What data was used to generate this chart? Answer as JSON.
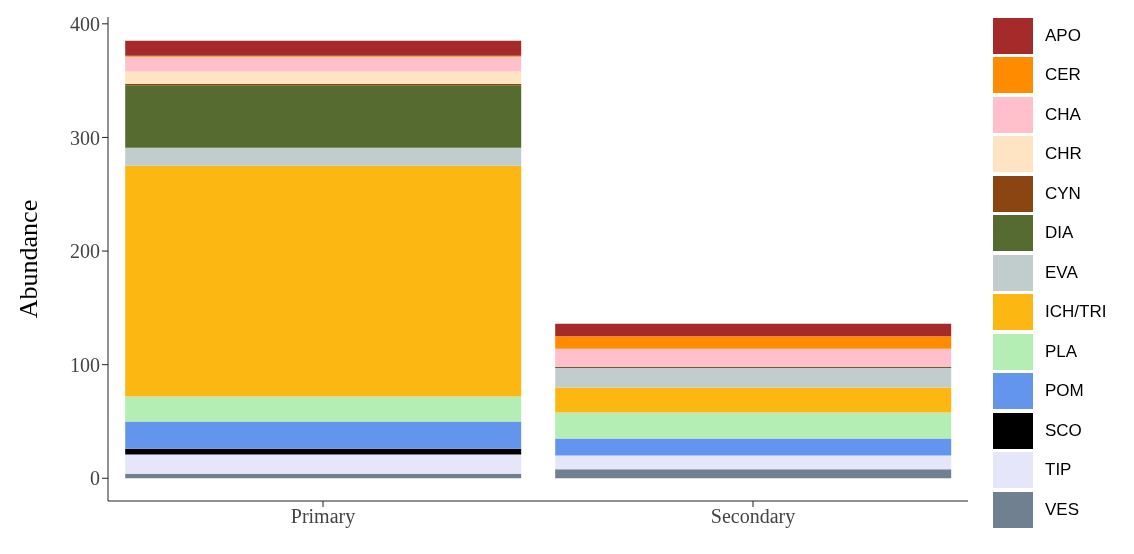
{
  "chart_data": {
    "type": "bar",
    "ylabel": "Abundance",
    "categories": [
      "Primary",
      "Secondary"
    ],
    "stacked": true,
    "ylim": [
      -20,
      406
    ],
    "yticks": [
      0,
      100,
      200,
      300,
      400
    ],
    "grid": false,
    "legend": "right",
    "series": [
      {
        "name": "VES",
        "color": "#708090",
        "values": [
          4,
          8
        ]
      },
      {
        "name": "TIP",
        "color": "#e6e6fa",
        "values": [
          17,
          12
        ]
      },
      {
        "name": "SCO",
        "color": "#000000",
        "values": [
          5,
          0
        ]
      },
      {
        "name": "POM",
        "color": "#6495ed",
        "values": [
          24,
          15
        ]
      },
      {
        "name": "PLA",
        "color": "#b4eeb4",
        "values": [
          22,
          23
        ]
      },
      {
        "name": "ICH/TRI",
        "color": "#fdb713",
        "values": [
          203,
          22
        ]
      },
      {
        "name": "EVA",
        "color": "#c1cdcd",
        "values": [
          16,
          17
        ]
      },
      {
        "name": "DIA",
        "color": "#556b2f",
        "values": [
          55,
          1
        ]
      },
      {
        "name": "CYN",
        "color": "#8b4513",
        "values": [
          1,
          0
        ]
      },
      {
        "name": "CHR",
        "color": "#ffe4c4",
        "values": [
          11,
          null
        ]
      },
      {
        "name": "CHA",
        "color": "#ffc0cb",
        "values": [
          13,
          16
        ]
      },
      {
        "name": "CER",
        "color": "#ff8c00",
        "values": [
          1,
          11
        ]
      },
      {
        "name": "APO",
        "color": "#a52a2a",
        "values": [
          13,
          11
        ]
      }
    ]
  }
}
